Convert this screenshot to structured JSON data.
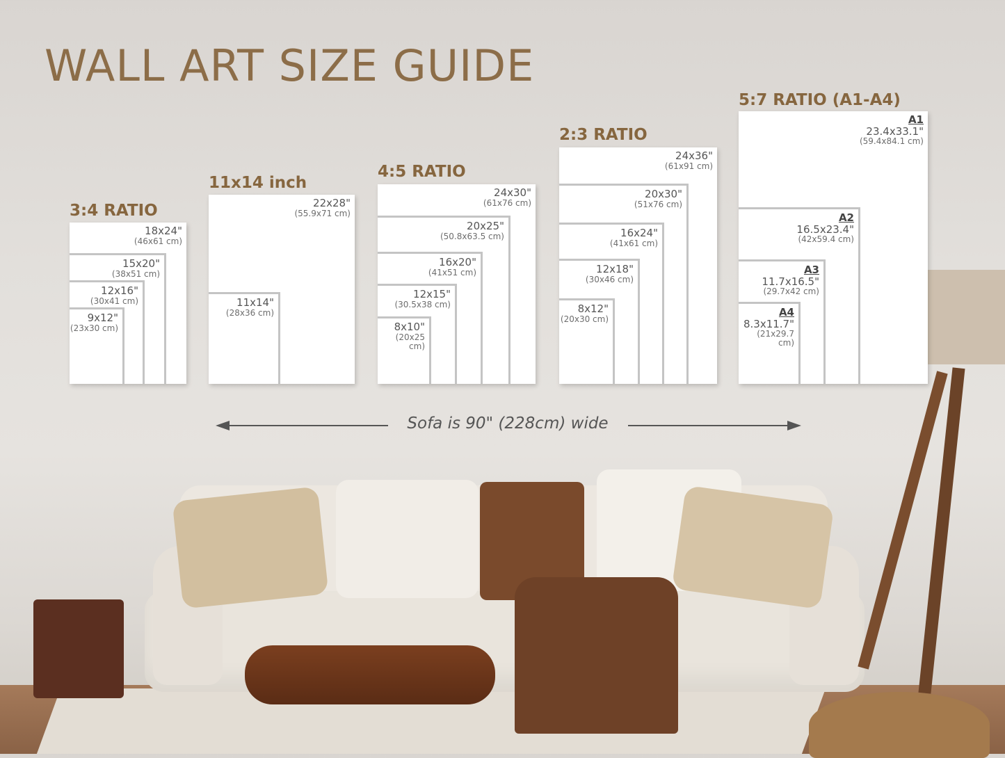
{
  "title": "WALL ART SIZE GUIDE",
  "accent_color": "#86663f",
  "groups": [
    {
      "title": "3:4 RATIO",
      "sizes": [
        {
          "in": "18x24\"",
          "cm": "(46x61 cm)"
        },
        {
          "in": "15x20\"",
          "cm": "(38x51 cm)"
        },
        {
          "in": "12x16\"",
          "cm": "(30x41 cm)"
        },
        {
          "in": "9x12\"",
          "cm": "(23x30 cm)"
        }
      ]
    },
    {
      "title": "11x14 inch",
      "sizes": [
        {
          "in": "22x28\"",
          "cm": "(55.9x71 cm)"
        },
        {
          "in": "11x14\"",
          "cm": "(28x36 cm)"
        }
      ]
    },
    {
      "title": "4:5 RATIO",
      "sizes": [
        {
          "in": "24x30\"",
          "cm": "(61x76 cm)"
        },
        {
          "in": "20x25\"",
          "cm": "(50.8x63.5 cm)"
        },
        {
          "in": "16x20\"",
          "cm": "(41x51 cm)"
        },
        {
          "in": "12x15\"",
          "cm": "(30.5x38 cm)"
        },
        {
          "in": "8x10\"",
          "cm": "(20x25 cm)"
        }
      ]
    },
    {
      "title": "2:3 RATIO",
      "sizes": [
        {
          "in": "24x36\"",
          "cm": "(61x91 cm)"
        },
        {
          "in": "20x30\"",
          "cm": "(51x76 cm)"
        },
        {
          "in": "16x24\"",
          "cm": "(41x61 cm)"
        },
        {
          "in": "12x18\"",
          "cm": "(30x46 cm)"
        },
        {
          "in": "8x12\"",
          "cm": "(20x30 cm)"
        }
      ]
    },
    {
      "title": "5:7 RATIO (A1-A4)",
      "sizes": [
        {
          "code": "A1",
          "in": "23.4x33.1\"",
          "cm": "(59.4x84.1 cm)"
        },
        {
          "code": "A2",
          "in": "16.5x23.4\"",
          "cm": "(42x59.4 cm)"
        },
        {
          "code": "A3",
          "in": "11.7x16.5\"",
          "cm": "(29.7x42 cm)"
        },
        {
          "code": "A4",
          "in": "8.3x11.7\"",
          "cm": "(21x29.7 cm)"
        }
      ]
    }
  ],
  "sofa_note": "Sofa is 90\" (228cm) wide"
}
